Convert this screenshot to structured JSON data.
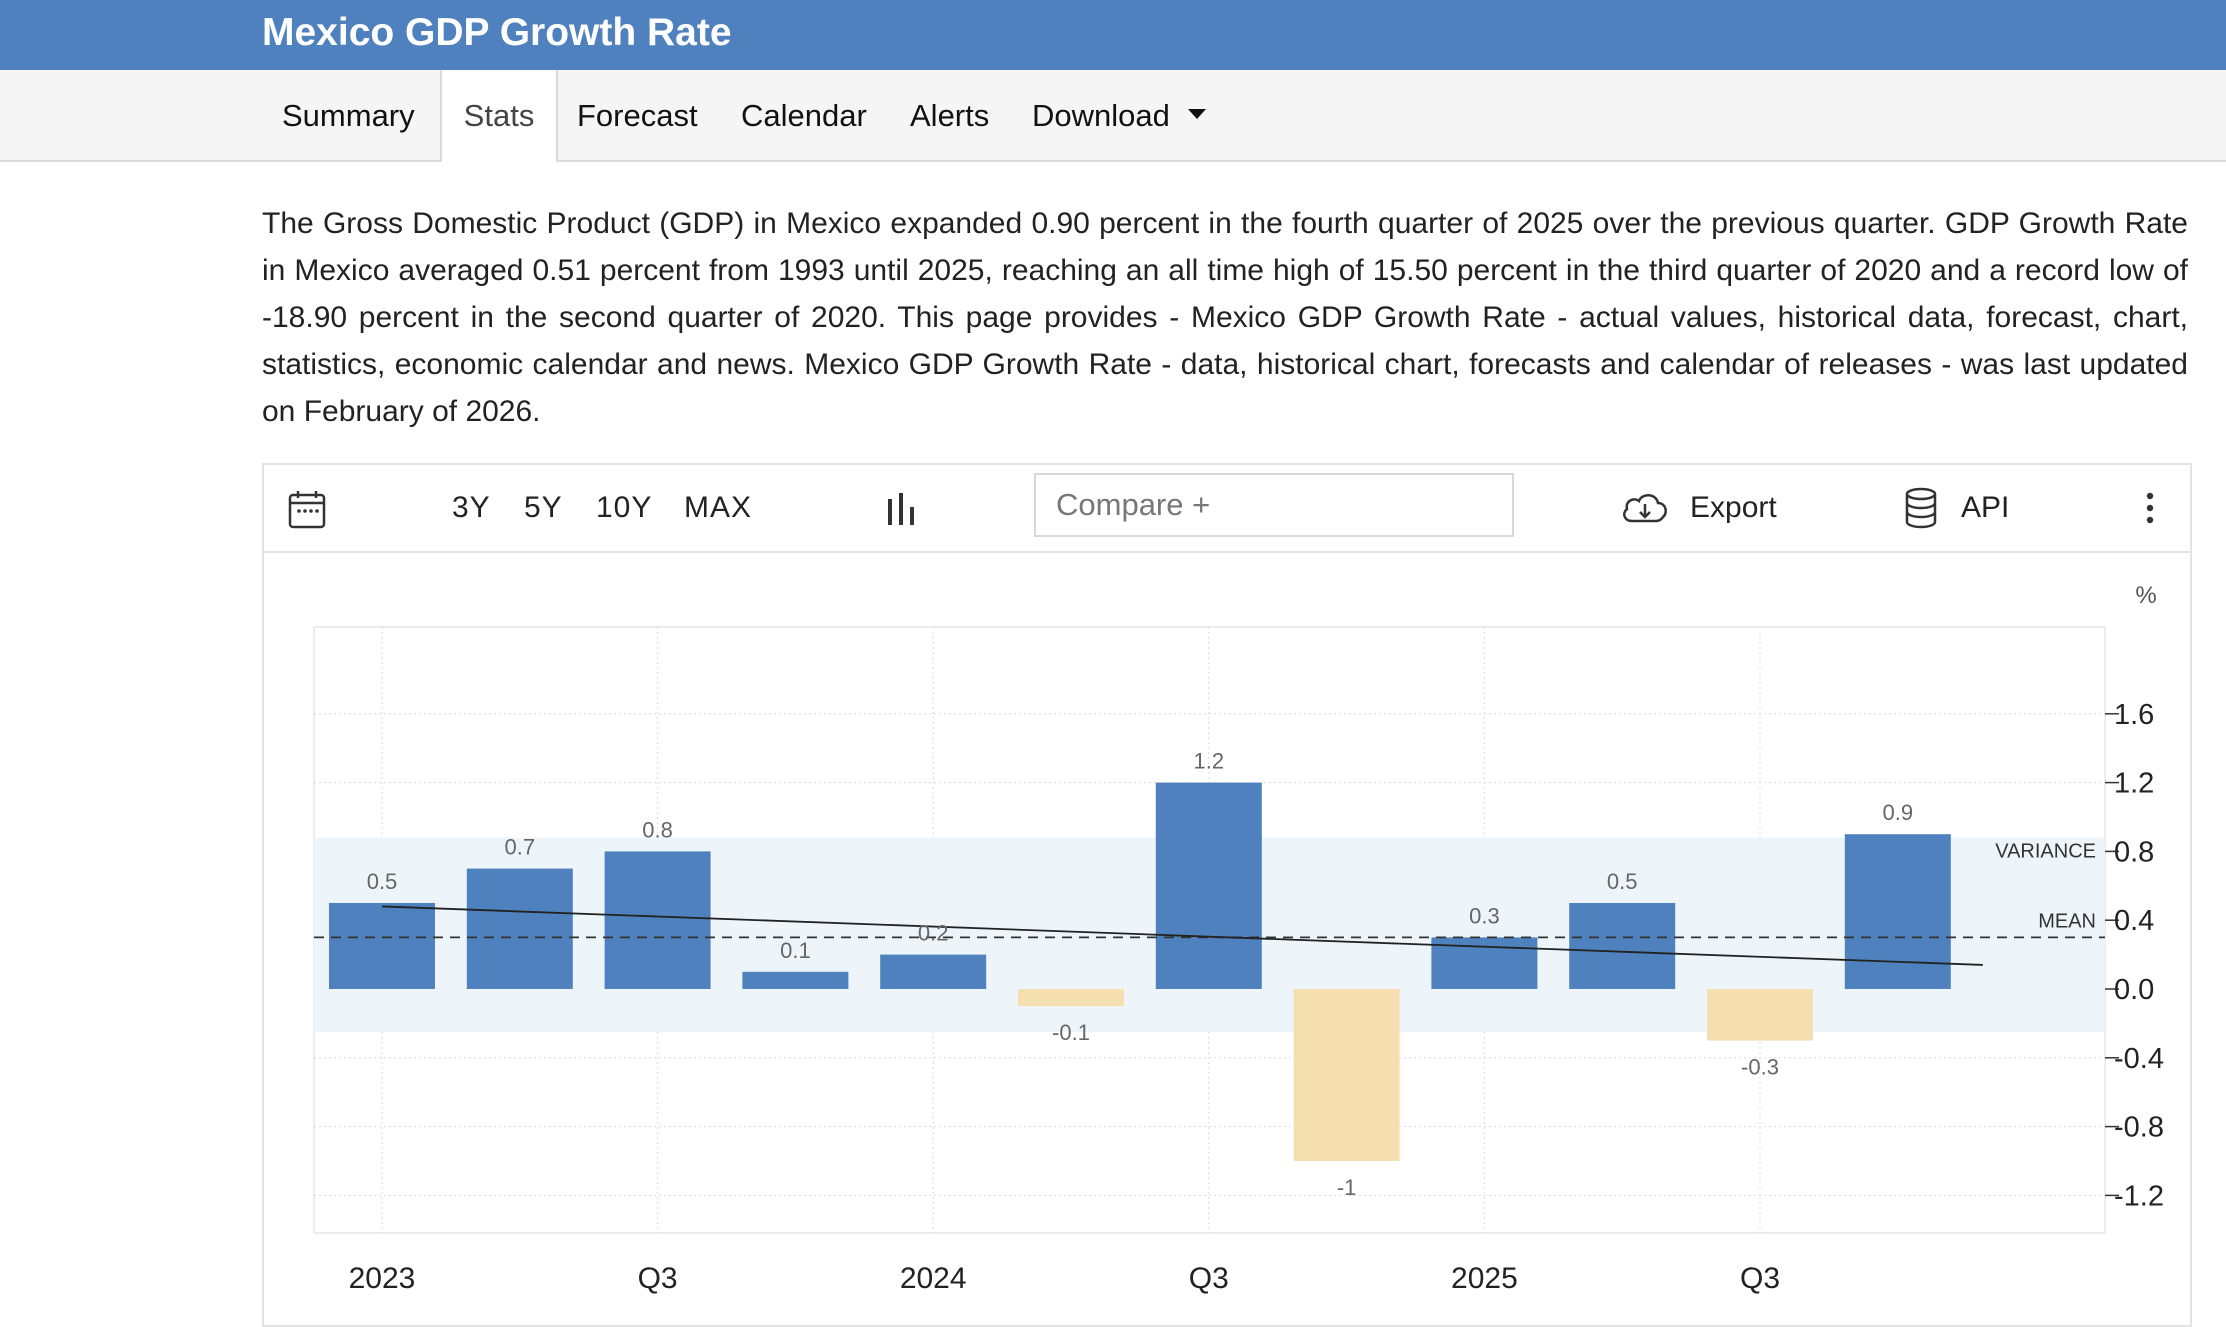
{
  "page": {
    "title": "Mexico GDP Growth Rate",
    "description": "The Gross Domestic Product (GDP) in Mexico expanded 0.90 percent in the fourth quarter of 2025 over the previous quarter. GDP Growth Rate in Mexico averaged 0.51 percent from 1993 until 2025, reaching an all time high of 15.50 percent in the third quarter of 2020 and a record low of -18.90 percent in the second quarter of 2020. This page provides - Mexico GDP Growth Rate - actual values, historical data, forecast, chart, statistics, economic calendar and news. Mexico GDP Growth Rate - data, historical chart, forecasts and calendar of releases - was last updated on February of 2026."
  },
  "nav": {
    "tabs": [
      {
        "label": "Summary",
        "active": false
      },
      {
        "label": "Stats",
        "active": true
      },
      {
        "label": "Forecast",
        "active": false
      },
      {
        "label": "Calendar",
        "active": false
      },
      {
        "label": "Alerts",
        "active": false
      },
      {
        "label": "Download",
        "active": false,
        "has_dropdown": true
      }
    ]
  },
  "toolbar": {
    "calendar_icon": "calendar-icon",
    "ranges": [
      "3Y",
      "5Y",
      "10Y",
      "MAX"
    ],
    "chart_type_icon": "bar-chart-icon",
    "compare_placeholder": "Compare +",
    "export_label": "Export",
    "export_icon": "cloud-download-icon",
    "api_label": "API",
    "api_icon": "database-icon",
    "more_icon": "more-vertical-icon"
  },
  "chart_data": {
    "type": "bar",
    "unit_label": "%",
    "categories": [
      "2023 Q1",
      "2023 Q2",
      "2023 Q3",
      "2023 Q4",
      "2024 Q1",
      "2024 Q2",
      "2024 Q3",
      "2024 Q4",
      "2025 Q1",
      "2025 Q2",
      "2025 Q3",
      "2025 Q4"
    ],
    "values": [
      0.5,
      0.7,
      0.8,
      0.1,
      0.2,
      -0.1,
      1.2,
      -1,
      0.3,
      0.5,
      -0.3,
      0.9
    ],
    "data_labels": [
      "0.5",
      "0.7",
      "0.8",
      "0.1",
      "0.2",
      "-0.1",
      "1.2",
      "-1",
      "0.3",
      "0.5",
      "-0.3",
      "0.9"
    ],
    "x_tick_labels": [
      "2023",
      "Q3",
      "2024",
      "Q3",
      "2025",
      "Q3"
    ],
    "x_tick_categories": [
      0,
      2,
      4,
      6,
      8,
      10
    ],
    "y_ticks": [
      "1.6",
      "1.2",
      "0.8",
      "0.4",
      "0.0",
      "-0.4",
      "-0.8",
      "-1.2"
    ],
    "y_tick_values": [
      1.6,
      1.2,
      0.8,
      0.4,
      0.0,
      -0.4,
      -0.8,
      -1.2
    ],
    "ylim": [
      -1.6,
      1.8
    ],
    "mean": 0.3,
    "mean_label": "MEAN",
    "variance_band": [
      -0.25,
      0.88
    ],
    "variance_label": "VARIANCE",
    "trend": [
      0.48,
      0.14
    ],
    "grid": true,
    "colors": {
      "positive": "#4e81bd",
      "negative": "#f5deb0",
      "band": "#edf5fb",
      "trend": "#222222",
      "mean": "#333333"
    }
  }
}
